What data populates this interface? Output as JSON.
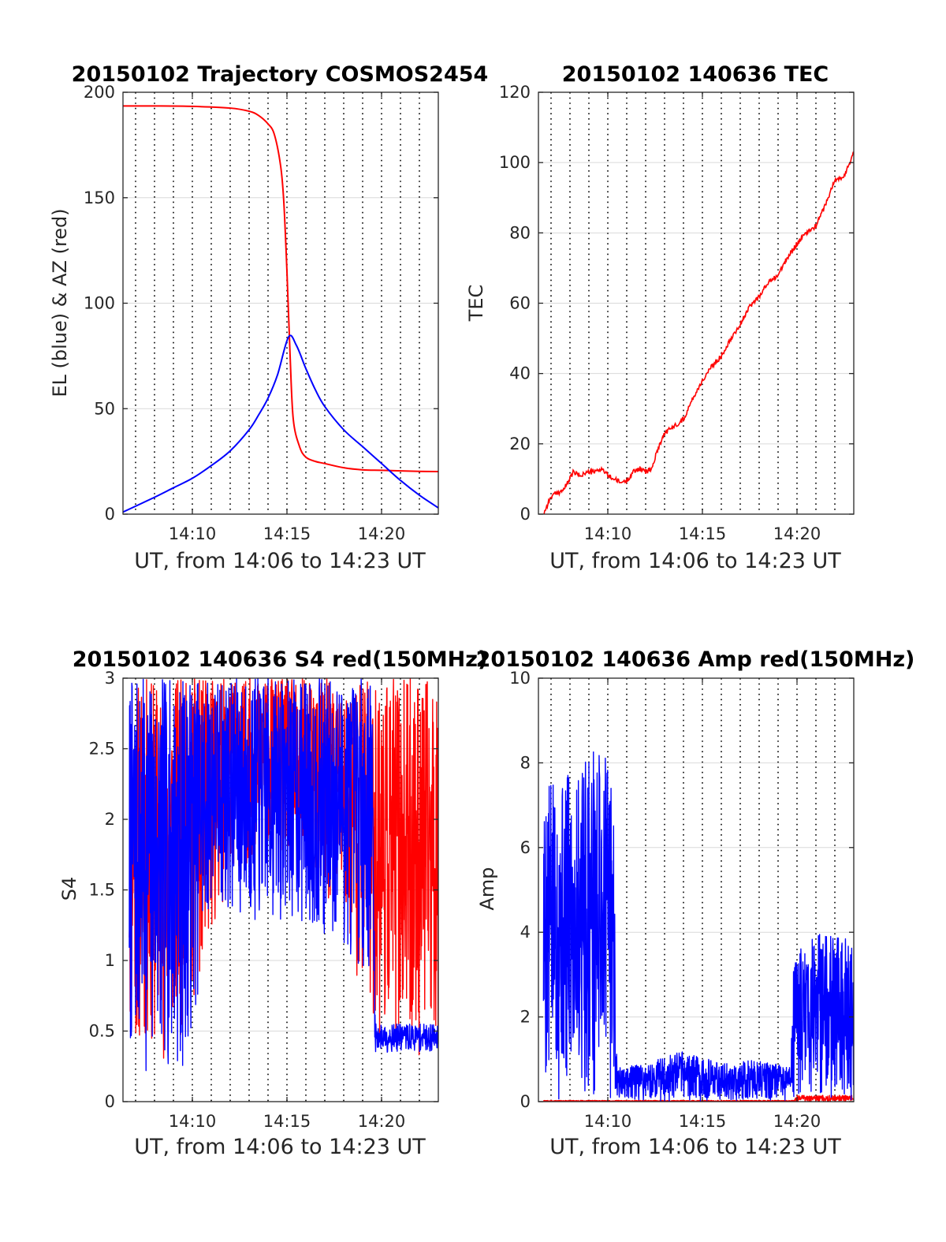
{
  "colors": {
    "red": "#ff0000",
    "blue": "#0000ff",
    "axis": "#262626",
    "grid": "#d9d9d9",
    "vgrid": "#000000"
  },
  "chart_data": [
    {
      "id": "trajectory",
      "type": "line",
      "title": "20150102 Trajectory COSMOS2454",
      "xlabel": "UT, from 14:06 to 14:23 UT",
      "ylabel": "EL (blue) & AZ (red)",
      "xlim": [
        "14:06:20",
        "14:23:00"
      ],
      "ylim": [
        0,
        200
      ],
      "xticks": [
        "14:10",
        "14:15",
        "14:20"
      ],
      "yticks": [
        0,
        50,
        100,
        150,
        200
      ],
      "grid": true,
      "series": [
        {
          "color": "red",
          "style": "smooth",
          "x": [
            "14:06:20",
            "14:08:00",
            "14:10:00",
            "14:12:00",
            "14:13:00",
            "14:13:30",
            "14:14:00",
            "14:14:20",
            "14:14:40",
            "14:14:50",
            "14:15:00",
            "14:15:10",
            "14:15:20",
            "14:15:40",
            "14:16:00",
            "14:16:30",
            "14:17:00",
            "14:18:00",
            "14:19:00",
            "14:20:00",
            "14:21:00",
            "14:22:00",
            "14:23:00"
          ],
          "y": [
            193.5,
            193.5,
            193.3,
            192.5,
            191,
            189,
            185,
            180,
            165,
            148,
            115,
            75,
            45,
            32,
            27,
            25,
            24,
            22,
            21,
            20.8,
            20.5,
            20.3,
            20.2
          ]
        },
        {
          "color": "blue",
          "style": "smooth",
          "x": [
            "14:06:20",
            "14:08:00",
            "14:09:00",
            "14:10:00",
            "14:11:00",
            "14:12:00",
            "14:13:00",
            "14:13:30",
            "14:14:00",
            "14:14:30",
            "14:15:05",
            "14:15:30",
            "14:16:00",
            "14:16:30",
            "14:17:00",
            "14:18:00",
            "14:19:00",
            "14:20:00",
            "14:21:00",
            "14:22:00",
            "14:23:00"
          ],
          "y": [
            1,
            8,
            12.5,
            17,
            23,
            30,
            40,
            47,
            55,
            66,
            84,
            80,
            69,
            59,
            51,
            40,
            32,
            24,
            16,
            9,
            3
          ]
        }
      ]
    },
    {
      "id": "tec",
      "type": "line",
      "title": "20150102 140636 TEC",
      "xlabel": "UT, from 14:06 to 14:23 UT",
      "ylabel": "TEC",
      "xlim": [
        "14:06:20",
        "14:23:00"
      ],
      "ylim": [
        0,
        120
      ],
      "xticks": [
        "14:10",
        "14:15",
        "14:20"
      ],
      "yticks": [
        0,
        20,
        40,
        60,
        80,
        100,
        120
      ],
      "grid": true,
      "series": [
        {
          "color": "red",
          "style": "jagged",
          "x": [
            "14:06:36",
            "14:06:50",
            "14:07:00",
            "14:07:20",
            "14:07:40",
            "14:08:00",
            "14:08:10",
            "14:08:30",
            "14:09:00",
            "14:09:20",
            "14:09:40",
            "14:10:00",
            "14:10:20",
            "14:10:40",
            "14:11:00",
            "14:11:20",
            "14:11:40",
            "14:12:00",
            "14:12:20",
            "14:12:40",
            "14:13:00",
            "14:13:30",
            "14:14:00",
            "14:14:30",
            "14:15:00",
            "14:15:30",
            "14:16:00",
            "14:16:30",
            "14:17:00",
            "14:17:30",
            "14:18:00",
            "14:18:30",
            "14:19:00",
            "14:19:30",
            "14:20:00",
            "14:20:30",
            "14:21:00",
            "14:21:30",
            "14:22:00",
            "14:22:30",
            "14:23:00"
          ],
          "y": [
            0,
            3,
            5,
            6,
            7,
            10,
            12,
            11,
            12,
            12,
            13,
            11,
            10,
            9,
            9.5,
            12,
            13,
            12,
            13,
            19,
            23,
            25,
            27,
            33,
            38,
            42,
            45,
            50,
            54,
            59,
            62,
            66,
            68,
            73,
            77,
            80,
            82,
            88,
            95,
            96,
            103
          ]
        }
      ]
    },
    {
      "id": "s4",
      "type": "line",
      "title": "20150102 140636 S4 red(150MHz)",
      "xlabel": "UT, from 14:06 to 14:23 UT",
      "ylabel": "S4",
      "xlim": [
        "14:06:20",
        "14:23:00"
      ],
      "ylim": [
        0,
        3
      ],
      "xticks": [
        "14:10",
        "14:15",
        "14:20"
      ],
      "yticks": [
        0,
        0.5,
        1,
        1.5,
        2,
        2.5,
        3
      ],
      "grid": true,
      "series": [
        {
          "color": "red",
          "style": "noise",
          "seed": 11,
          "envelope_x": [
            "14:06:40",
            "14:09:00",
            "14:10:00",
            "14:12:00",
            "14:14:00",
            "14:16:00",
            "14:18:00",
            "14:19:30",
            "14:21:00",
            "14:23:00"
          ],
          "envelope_lo": [
            0.3,
            0.3,
            0.6,
            1.6,
            1.8,
            1.6,
            1.2,
            0.5,
            0.3,
            0.3
          ],
          "envelope_hi": [
            3,
            3,
            3,
            3,
            3,
            3,
            3,
            3,
            3,
            3
          ]
        },
        {
          "color": "blue",
          "style": "noise",
          "seed": 7,
          "envelope_x": [
            "14:06:40",
            "14:09:30",
            "14:10:00",
            "14:11:00",
            "14:13:00",
            "14:15:00",
            "14:17:00",
            "14:18:30",
            "14:19:30",
            "14:19:40",
            "14:23:00"
          ],
          "envelope_lo": [
            0.2,
            0.2,
            0.5,
            1.4,
            1.2,
            1.3,
            1.1,
            1.0,
            0.9,
            0.35,
            0.35
          ],
          "envelope_hi": [
            3,
            3,
            3,
            3,
            3,
            3,
            3,
            3,
            3,
            0.55,
            0.55
          ]
        }
      ]
    },
    {
      "id": "amp",
      "type": "line",
      "title": "20150102 140636 Amp red(150MHz)",
      "xlabel": "UT, from 14:06 to 14:23 UT",
      "ylabel": "Amp",
      "xlim": [
        "14:06:20",
        "14:23:00"
      ],
      "ylim": [
        0,
        10
      ],
      "xticks": [
        "14:10",
        "14:15",
        "14:20"
      ],
      "yticks": [
        0,
        2,
        4,
        6,
        8,
        10
      ],
      "grid": true,
      "series": [
        {
          "color": "red",
          "style": "noise",
          "seed": 3,
          "envelope_x": [
            "14:06:36",
            "14:19:50",
            "14:20:00",
            "14:23:00"
          ],
          "envelope_lo": [
            0,
            0,
            0,
            0
          ],
          "envelope_hi": [
            0.03,
            0.03,
            0.15,
            0.15
          ]
        },
        {
          "color": "blue",
          "style": "noise",
          "seed": 5,
          "envelope_x": [
            "14:06:36",
            "14:08:00",
            "14:09:00",
            "14:10:00",
            "14:10:20",
            "14:10:30",
            "14:12:00",
            "14:14:00",
            "14:16:00",
            "14:18:00",
            "14:19:40",
            "14:19:50",
            "14:21:00",
            "14:23:00"
          ],
          "envelope_lo": [
            0,
            0,
            0,
            0,
            0,
            0,
            0,
            0,
            0,
            0,
            0,
            0,
            0,
            0
          ],
          "envelope_hi": [
            7.5,
            7.8,
            8.3,
            8.5,
            6.5,
            0.8,
            0.9,
            1.2,
            0.9,
            1.0,
            0.8,
            3.5,
            4.0,
            3.8
          ]
        }
      ]
    }
  ]
}
